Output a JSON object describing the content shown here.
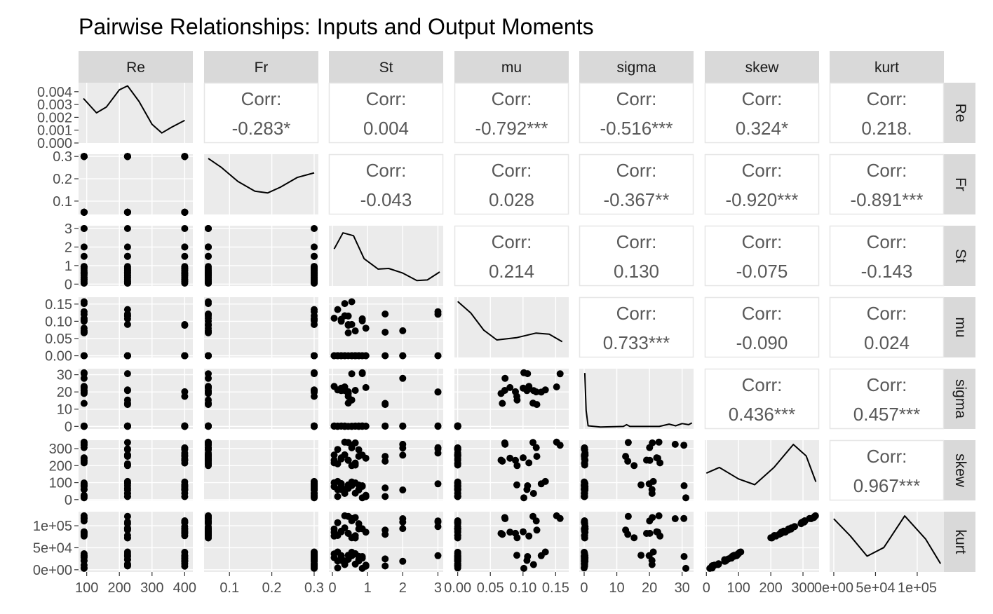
{
  "chart_data": {
    "type": "scatter",
    "title": "Pairwise Relationships: Inputs and Output Moments",
    "variables": [
      "Re",
      "Fr",
      "St",
      "mu",
      "sigma",
      "skew",
      "kurt"
    ],
    "corr_label": "Corr:",
    "correlations": [
      {
        "row": "Re",
        "col": "Fr",
        "text": "-0.283*"
      },
      {
        "row": "Re",
        "col": "St",
        "text": "0.004"
      },
      {
        "row": "Re",
        "col": "mu",
        "text": "-0.792***"
      },
      {
        "row": "Re",
        "col": "sigma",
        "text": "-0.516***"
      },
      {
        "row": "Re",
        "col": "skew",
        "text": "0.324*"
      },
      {
        "row": "Re",
        "col": "kurt",
        "text": "0.218."
      },
      {
        "row": "Fr",
        "col": "St",
        "text": "-0.043"
      },
      {
        "row": "Fr",
        "col": "mu",
        "text": "0.028"
      },
      {
        "row": "Fr",
        "col": "sigma",
        "text": "-0.367**"
      },
      {
        "row": "Fr",
        "col": "skew",
        "text": "-0.920***"
      },
      {
        "row": "Fr",
        "col": "kurt",
        "text": "-0.891***"
      },
      {
        "row": "St",
        "col": "mu",
        "text": "0.214"
      },
      {
        "row": "St",
        "col": "sigma",
        "text": "0.130"
      },
      {
        "row": "St",
        "col": "skew",
        "text": "-0.075"
      },
      {
        "row": "St",
        "col": "kurt",
        "text": "-0.143"
      },
      {
        "row": "mu",
        "col": "sigma",
        "text": "0.733***"
      },
      {
        "row": "mu",
        "col": "skew",
        "text": "-0.090"
      },
      {
        "row": "mu",
        "col": "kurt",
        "text": "0.024"
      },
      {
        "row": "sigma",
        "col": "skew",
        "text": "0.436***"
      },
      {
        "row": "sigma",
        "col": "kurt",
        "text": "0.457***"
      },
      {
        "row": "skew",
        "col": "kurt",
        "text": "0.967***"
      }
    ],
    "axes": {
      "Re": {
        "range": [
          75,
          425
        ],
        "ticks": [
          100,
          200,
          300,
          400
        ],
        "tick_labels": [
          "100",
          "200",
          "300",
          "400"
        ]
      },
      "Fr": {
        "range": [
          0.04,
          0.31
        ],
        "ticks": [
          0.1,
          0.2,
          0.3
        ],
        "tick_labels": [
          "0.1",
          "0.2",
          "0.3"
        ]
      },
      "St": {
        "range": [
          -0.1,
          3.15
        ],
        "ticks": [
          0,
          1,
          2,
          3
        ],
        "tick_labels": [
          "0",
          "1",
          "2",
          "3"
        ]
      },
      "mu": {
        "range": [
          -0.005,
          0.17
        ],
        "ticks": [
          0.0,
          0.05,
          0.1,
          0.15
        ],
        "tick_labels": [
          "0.00",
          "0.05",
          "0.10",
          "0.15"
        ]
      },
      "sigma": {
        "range": [
          -1.5,
          33.5
        ],
        "ticks": [
          0,
          10,
          20,
          30
        ],
        "tick_labels": [
          "0",
          "10",
          "20",
          "30"
        ]
      },
      "skew": {
        "range": [
          -5,
          350
        ],
        "ticks": [
          0,
          100,
          200,
          300
        ],
        "tick_labels": [
          "0",
          "100",
          "200",
          "300"
        ]
      },
      "kurt": {
        "range": [
          -5000,
          132000
        ],
        "ticks": [
          0,
          50000,
          100000
        ],
        "tick_labels": [
          "0e+00",
          "5e+04",
          "1e+05"
        ]
      }
    },
    "diag_density_label_ticks": {
      "Re": [
        0.0,
        0.001,
        0.002,
        0.003,
        0.004
      ],
      "Re_labels": [
        "0.000",
        "0.001",
        "0.002",
        "0.003",
        "0.004"
      ]
    },
    "diag_density_curves": {
      "Re": [
        [
          90,
          0.75
        ],
        [
          130,
          0.5
        ],
        [
          160,
          0.6
        ],
        [
          200,
          0.9
        ],
        [
          225,
          0.97
        ],
        [
          260,
          0.7
        ],
        [
          300,
          0.3
        ],
        [
          330,
          0.15
        ],
        [
          360,
          0.25
        ],
        [
          400,
          0.37
        ]
      ],
      "Fr": [
        [
          0.05,
          0.95
        ],
        [
          0.08,
          0.8
        ],
        [
          0.12,
          0.55
        ],
        [
          0.16,
          0.38
        ],
        [
          0.19,
          0.35
        ],
        [
          0.22,
          0.45
        ],
        [
          0.26,
          0.62
        ],
        [
          0.3,
          0.7
        ]
      ],
      "St": [
        [
          0.05,
          0.62
        ],
        [
          0.3,
          0.9
        ],
        [
          0.6,
          0.85
        ],
        [
          0.9,
          0.45
        ],
        [
          1.3,
          0.27
        ],
        [
          1.6,
          0.28
        ],
        [
          2.0,
          0.2
        ],
        [
          2.4,
          0.07
        ],
        [
          2.7,
          0.08
        ],
        [
          3.05,
          0.22
        ]
      ],
      "mu": [
        [
          0.0,
          0.95
        ],
        [
          0.02,
          0.75
        ],
        [
          0.04,
          0.45
        ],
        [
          0.06,
          0.28
        ],
        [
          0.09,
          0.32
        ],
        [
          0.12,
          0.4
        ],
        [
          0.14,
          0.38
        ],
        [
          0.16,
          0.25
        ]
      ],
      "sigma": [
        [
          0.2,
          0.95
        ],
        [
          0.6,
          0.3
        ],
        [
          1.2,
          0.03
        ],
        [
          5,
          0.01
        ],
        [
          12,
          0.02
        ],
        [
          13,
          0.05
        ],
        [
          14,
          0.02
        ],
        [
          23,
          0.02
        ],
        [
          26,
          0.06
        ],
        [
          28,
          0.03
        ],
        [
          30,
          0.07
        ],
        [
          32,
          0.05
        ],
        [
          33,
          0.08
        ]
      ],
      "skew": [
        [
          0,
          0.45
        ],
        [
          40,
          0.55
        ],
        [
          100,
          0.35
        ],
        [
          150,
          0.25
        ],
        [
          210,
          0.55
        ],
        [
          270,
          0.95
        ],
        [
          310,
          0.75
        ],
        [
          340,
          0.3
        ]
      ],
      "kurt": [
        [
          0,
          0.9
        ],
        [
          20000,
          0.6
        ],
        [
          40000,
          0.25
        ],
        [
          60000,
          0.4
        ],
        [
          85000,
          0.95
        ],
        [
          110000,
          0.55
        ],
        [
          128000,
          0.12
        ]
      ]
    }
  }
}
